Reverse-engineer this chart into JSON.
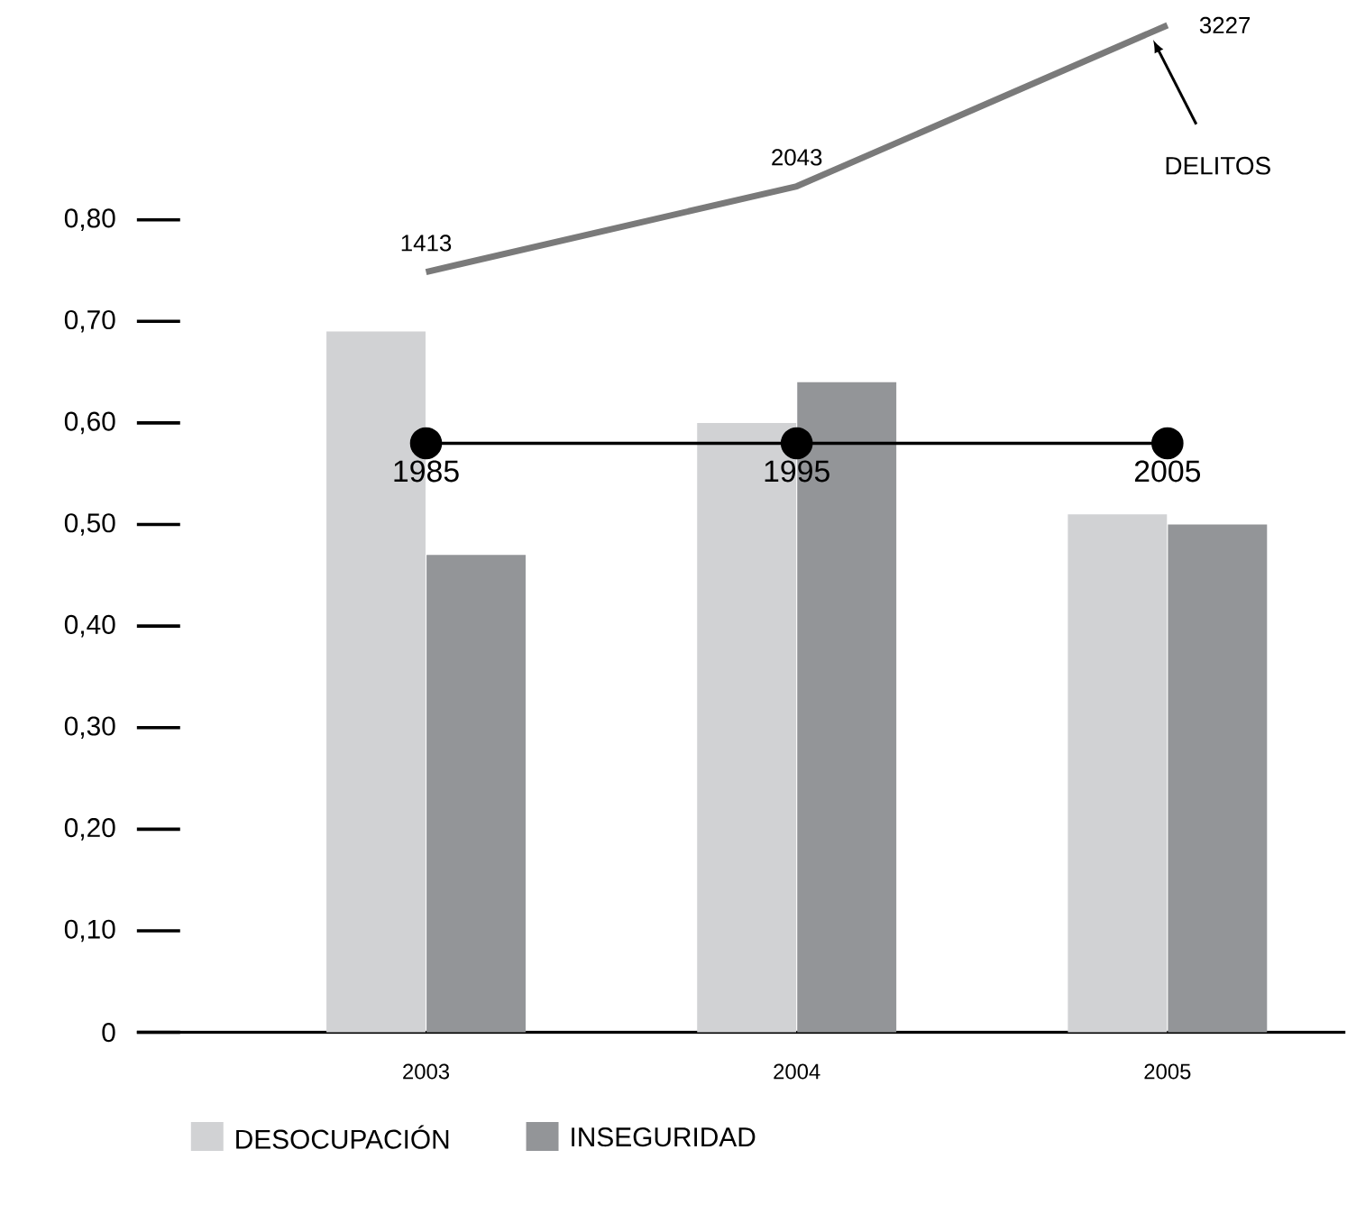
{
  "chart_data": {
    "type": "bar",
    "categories": [
      "2003",
      "2004",
      "2005"
    ],
    "series": [
      {
        "name": "DESOCUPACIÓN",
        "color": "#d1d2d4",
        "values": [
          0.69,
          0.6,
          0.51
        ]
      },
      {
        "name": "INSEGURIDAD",
        "color": "#939598",
        "values": [
          0.47,
          0.64,
          0.5
        ]
      },
      {
        "name": "DELITOS",
        "type": "line",
        "axis": "y2",
        "color": "#7a7a7a",
        "values": [
          1413,
          2043,
          3227
        ],
        "value_labels": [
          "1413",
          "2043",
          "3227"
        ],
        "marker": "none"
      },
      {
        "type": "line",
        "color": "#000000",
        "values": [
          0.58,
          0.58,
          0.58
        ],
        "marker": "circle"
      }
    ],
    "annotations": [
      {
        "text": "1985",
        "x": "2003",
        "y": 0.58
      },
      {
        "text": "1995",
        "x": "2004",
        "y": 0.58
      },
      {
        "text": "2005",
        "x": "2005",
        "y": 0.58
      }
    ],
    "ylim": [
      0,
      0.8
    ],
    "yticks": [
      {
        "value": 0,
        "label": "0"
      },
      {
        "value": 0.1,
        "label": "0,10"
      },
      {
        "value": 0.2,
        "label": "0,20"
      },
      {
        "value": 0.3,
        "label": "0,30"
      },
      {
        "value": 0.4,
        "label": "0,40"
      },
      {
        "value": 0.5,
        "label": "0,50"
      },
      {
        "value": 0.6,
        "label": "0,60"
      },
      {
        "value": 0.7,
        "label": "0,70"
      },
      {
        "value": 0.8,
        "label": "0,80"
      }
    ],
    "grid": false,
    "legend": "bottom left"
  }
}
